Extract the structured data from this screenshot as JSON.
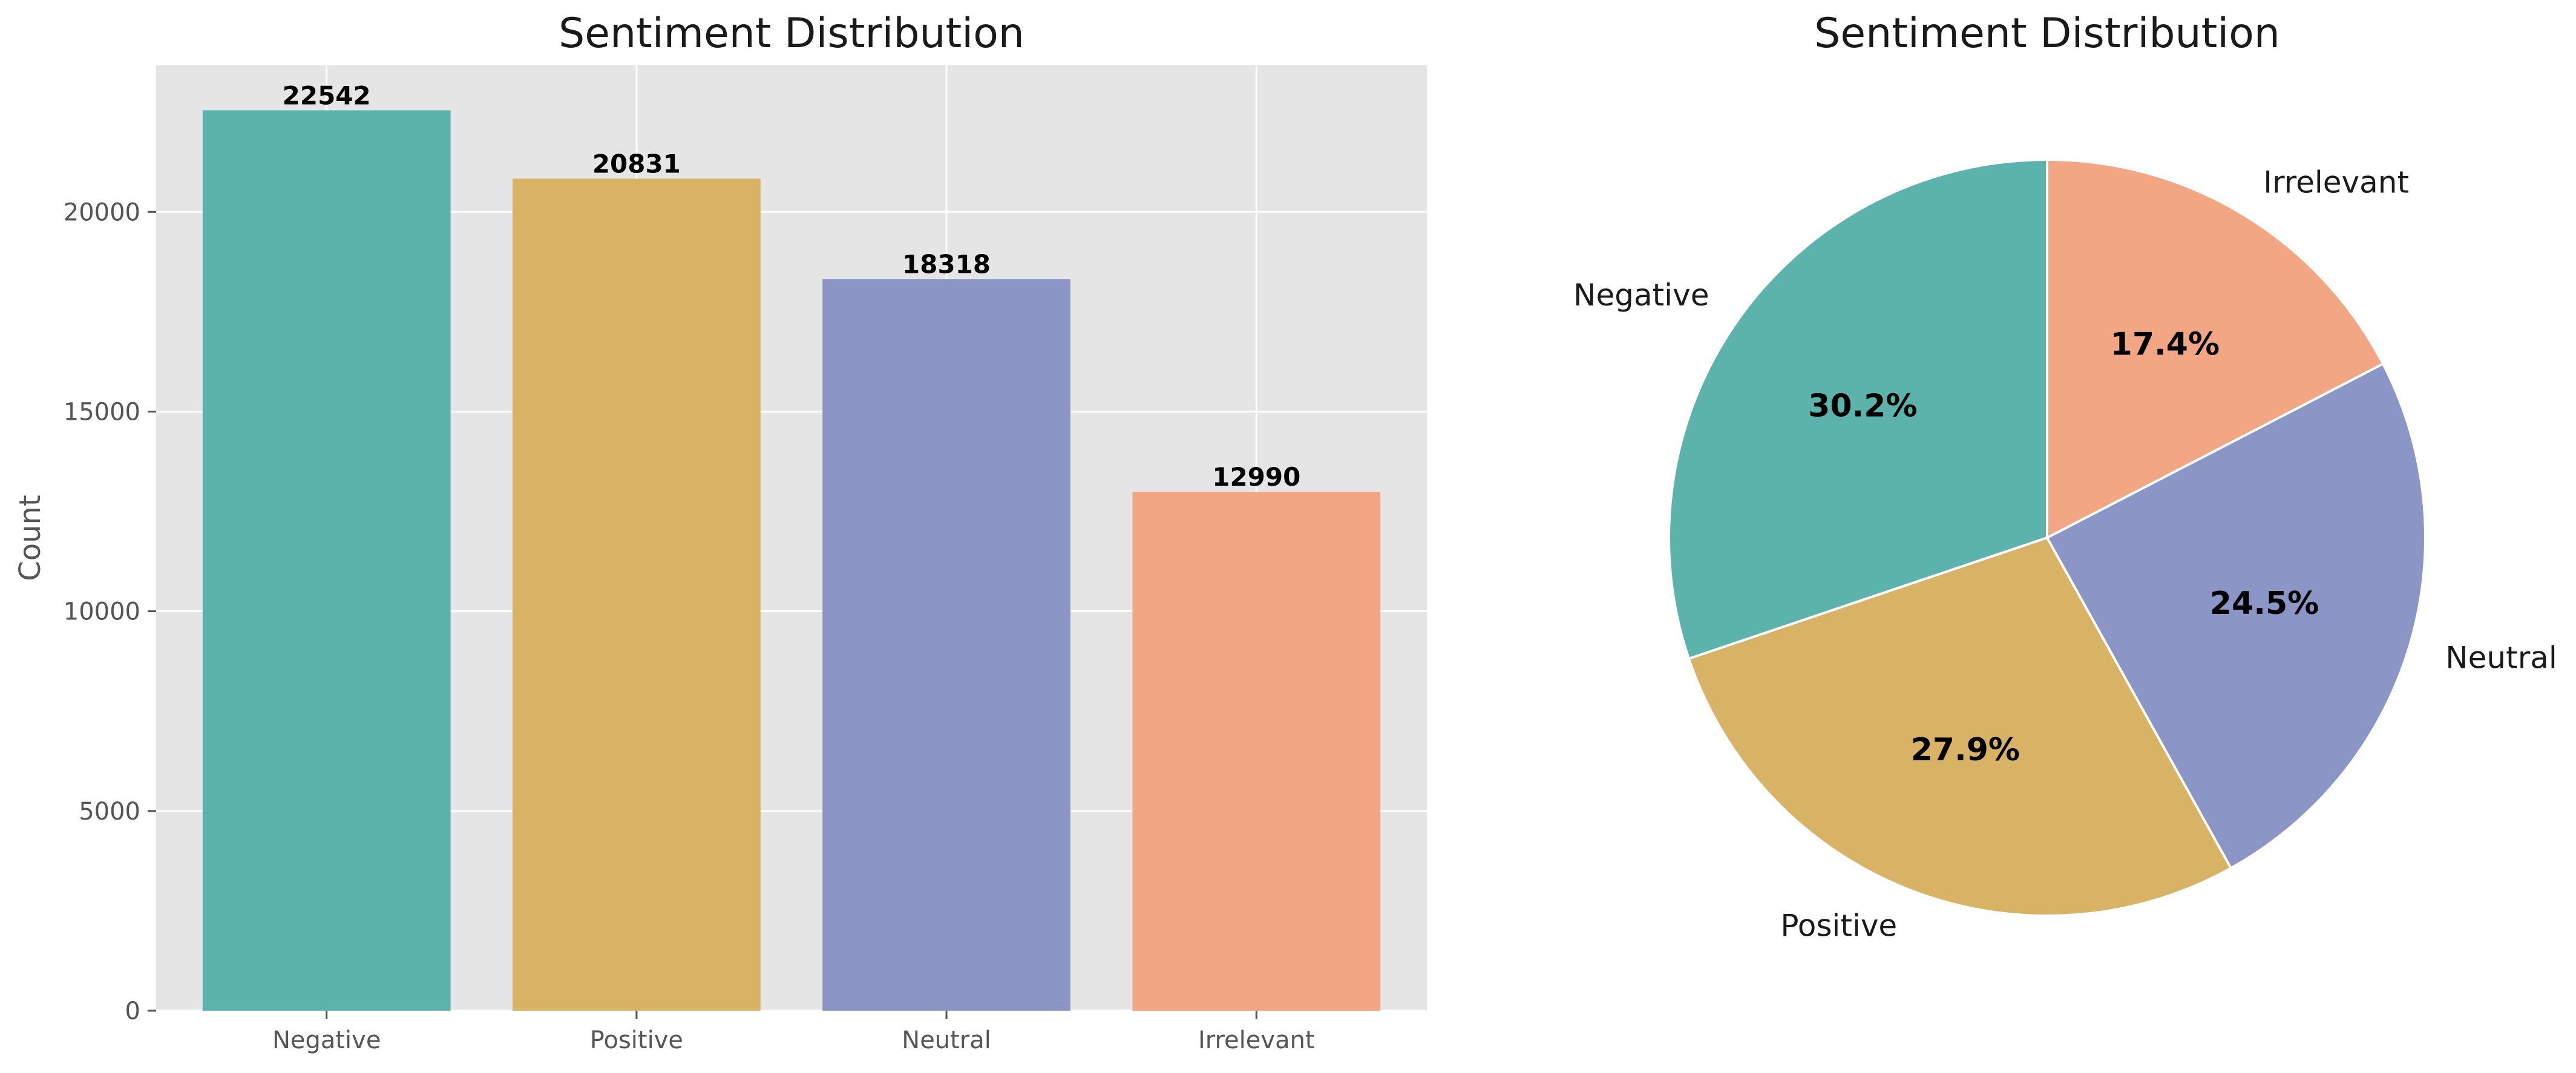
{
  "chart_data": [
    {
      "type": "bar",
      "title": "Sentiment Distribution",
      "xlabel": "",
      "ylabel": "Count",
      "categories": [
        "Negative",
        "Positive",
        "Neutral",
        "Irrelevant"
      ],
      "values": [
        22542,
        20831,
        18318,
        12990
      ],
      "value_labels": [
        "22542",
        "20831",
        "18318",
        "12990"
      ],
      "colors": [
        "#5bb3ab",
        "#d8b265",
        "#8c96c6",
        "#f2a683"
      ],
      "ylim": [
        0,
        23669
      ],
      "yticks": [
        0,
        5000,
        10000,
        15000,
        20000
      ],
      "ytick_labels": [
        "0",
        "5000",
        "10000",
        "15000",
        "20000"
      ],
      "grid": true,
      "background": "#e5e5e5",
      "grid_color": "#ffffff"
    },
    {
      "type": "pie",
      "title": "Sentiment Distribution",
      "labels": [
        "Negative",
        "Positive",
        "Neutral",
        "Irrelevant"
      ],
      "values": [
        22542,
        20831,
        18318,
        12990
      ],
      "percent_labels": [
        "30.2%",
        "27.9%",
        "24.5%",
        "17.4%"
      ],
      "colors": [
        "#5bb3ab",
        "#d8b265",
        "#8c96c6",
        "#f2a683"
      ],
      "start_angle_deg": 90,
      "direction": "counterclockwise",
      "edge_color": "#ffffff"
    }
  ]
}
